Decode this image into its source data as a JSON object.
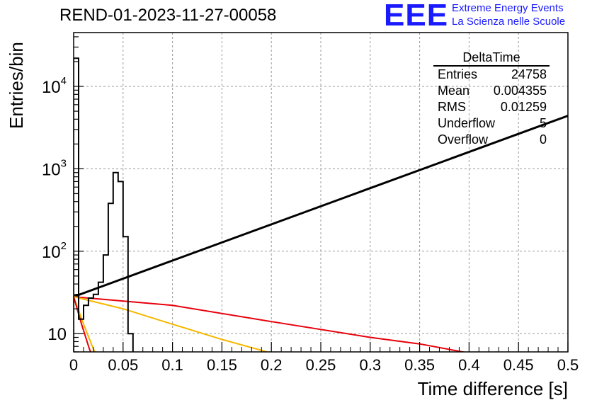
{
  "header": {
    "title": "REND-01-2023-11-27-00058",
    "logo": "EEE",
    "logo_line1": "Extreme Energy Events",
    "logo_line2": "La Scienza nelle Scuole"
  },
  "stats_box": {
    "title": "DeltaTime",
    "rows": [
      {
        "label": "Entries",
        "value": "24758"
      },
      {
        "label": "Mean",
        "value": "0.004355"
      },
      {
        "label": "RMS",
        "value": "0.01259"
      },
      {
        "label": "Underflow",
        "value": "5"
      },
      {
        "label": "Overflow",
        "value": "0"
      }
    ]
  },
  "chart_data": {
    "type": "histogram",
    "xlabel": "Time difference [s]",
    "ylabel": "Entries/bin",
    "xlim": [
      0,
      0.5
    ],
    "ylim": [
      6,
      45000
    ],
    "log_y": true,
    "grid": true,
    "x_ticks": [
      "0",
      "0.05",
      "0.1",
      "0.15",
      "0.2",
      "0.25",
      "0.3",
      "0.35",
      "0.4",
      "0.45",
      "0.5"
    ],
    "x_tick_values": [
      0,
      0.05,
      0.1,
      0.15,
      0.2,
      0.25,
      0.3,
      0.35,
      0.4,
      0.45,
      0.5
    ],
    "y_tick_values": [
      10,
      100,
      1000,
      10000
    ],
    "y_tick_labels": [
      {
        "base": "10",
        "exp": ""
      },
      {
        "base": "10",
        "exp": "2"
      },
      {
        "base": "10",
        "exp": "3"
      },
      {
        "base": "10",
        "exp": "4"
      }
    ],
    "histogram": {
      "color": "#000000",
      "edges": [
        0,
        0.005,
        0.01,
        0.015,
        0.02,
        0.025,
        0.03,
        0.035,
        0.04,
        0.045,
        0.05,
        0.055,
        0.06
      ],
      "counts": [
        22000,
        15,
        22,
        27,
        30,
        42,
        90,
        380,
        900,
        700,
        150,
        10
      ]
    },
    "lines": [
      {
        "color": "#000000",
        "x": [
          0,
          0.5
        ],
        "y": [
          28,
          4400
        ]
      },
      {
        "color": "#e8000b",
        "x": [
          0,
          0.1,
          0.2,
          0.3,
          0.35,
          0.4
        ],
        "y": [
          28,
          22,
          14,
          9,
          7.5,
          5.8
        ]
      },
      {
        "color": "#f5b800",
        "x": [
          0,
          0.05,
          0.1,
          0.15,
          0.2
        ],
        "y": [
          28,
          20,
          13,
          8.5,
          5.8
        ]
      },
      {
        "color": "#f5b800",
        "x": [
          0,
          0.01,
          0.02,
          0.025
        ],
        "y": [
          28,
          13,
          6.5,
          5
        ]
      },
      {
        "color": "#e8000b",
        "x": [
          0,
          0.008,
          0.016,
          0.02
        ],
        "y": [
          28,
          13,
          6.5,
          5
        ]
      }
    ]
  }
}
